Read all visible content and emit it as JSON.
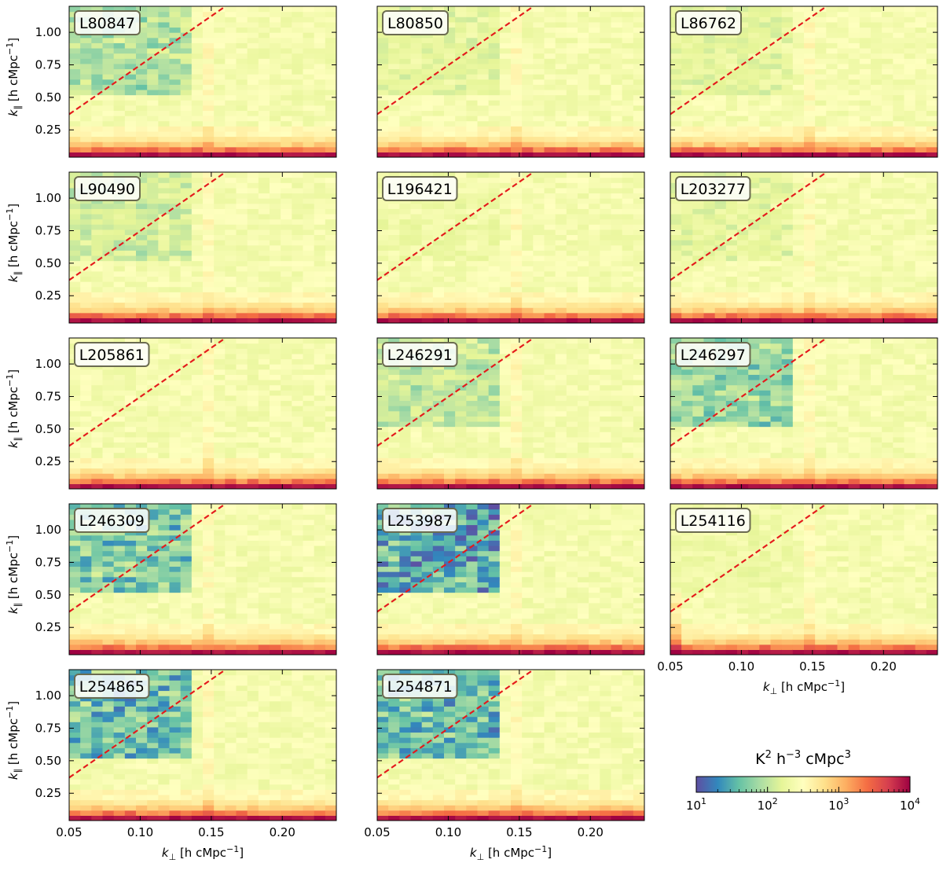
{
  "chart_data": {
    "type": "heatmap",
    "description_units": "K^2 h^-3 cMpc^3",
    "panels": [
      {
        "id": "L80847"
      },
      {
        "id": "L80850"
      },
      {
        "id": "L86762"
      },
      {
        "id": "L90490"
      },
      {
        "id": "L196421"
      },
      {
        "id": "L203277"
      },
      {
        "id": "L205861"
      },
      {
        "id": "L246291"
      },
      {
        "id": "L246297"
      },
      {
        "id": "L246309"
      },
      {
        "id": "L253987"
      },
      {
        "id": "L254116"
      },
      {
        "id": "L254865"
      },
      {
        "id": "L254871"
      }
    ],
    "xaxis": {
      "label_main": "k",
      "label_sub": "⊥",
      "label_units": " [h cMpc",
      "label_exp": "−1",
      "label_close": "]",
      "range": [
        0.05,
        0.238
      ],
      "ticks": [
        0.05,
        0.1,
        0.15,
        0.2
      ],
      "tick_labels": [
        "0.05",
        "0.10",
        "0.15",
        "0.20"
      ]
    },
    "yaxis": {
      "label_main": "k",
      "label_sub": "∥",
      "label_units": " [h cMpc",
      "label_exp": "−1",
      "label_close": "]",
      "range": [
        0.04,
        1.2
      ],
      "ticks": [
        0.25,
        0.5,
        0.75,
        1.0
      ],
      "tick_labels": [
        "0.25",
        "0.50",
        "0.75",
        "1.00"
      ]
    },
    "wedge_line": {
      "style": "dashed",
      "color": "#e41a1c",
      "points": [
        [
          0.05,
          0.37
        ],
        [
          0.16,
          1.2
        ]
      ]
    },
    "colorbar": {
      "title_base": "K",
      "title_sup1": "2",
      "title_mid": " h",
      "title_sup2": "−3",
      "title_end": " cMpc",
      "title_sup3": "3",
      "scale": "log",
      "range": [
        10,
        10000
      ],
      "tick_bases": [
        "10",
        "10",
        "10",
        "10"
      ],
      "tick_exps": [
        "1",
        "2",
        "3",
        "4"
      ],
      "colormap": "Spectral_r"
    }
  }
}
